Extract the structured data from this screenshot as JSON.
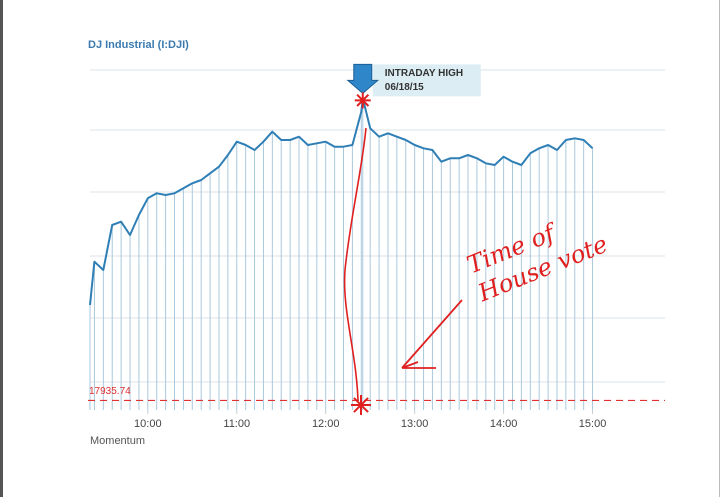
{
  "chart_data": {
    "type": "line",
    "title": "DJ Industrial (I:DJI)",
    "color": "#2f7fb6",
    "x": [
      561,
      564,
      570,
      576,
      582,
      588,
      594,
      600,
      606,
      612,
      618,
      624,
      630,
      636,
      642,
      648,
      654,
      660,
      666,
      672,
      678,
      684,
      690,
      696,
      702,
      708,
      714,
      720,
      726,
      732,
      738,
      744,
      745,
      750,
      756,
      762,
      768,
      774,
      780,
      786,
      792,
      798,
      804,
      810,
      816,
      822,
      828,
      834,
      840,
      846,
      852,
      858,
      864,
      870,
      876,
      882,
      888,
      894,
      900
    ],
    "values": [
      17993,
      18019,
      18014,
      18041,
      18043,
      18035,
      18047,
      18057,
      18060,
      18059,
      18060,
      18063,
      18066,
      18068,
      18072,
      18076,
      18083,
      18091,
      18089,
      18086,
      18091,
      18097,
      18092,
      18092,
      18094,
      18089,
      18090,
      18091,
      18088,
      18088,
      18089,
      18109,
      18117,
      18099,
      18094,
      18096,
      18094,
      18092,
      18089,
      18087,
      18086,
      18079,
      18081,
      18081,
      18083,
      18081,
      18078,
      18077,
      18082,
      18079,
      18077,
      18084,
      18087,
      18089,
      18086,
      18092,
      18093,
      18092,
      18087
    ],
    "xlim": [
      561,
      903
    ],
    "xticks": [
      {
        "value": 600,
        "label": "10:00"
      },
      {
        "value": 660,
        "label": "11:00"
      },
      {
        "value": 720,
        "label": "12:00"
      },
      {
        "value": 780,
        "label": "13:00"
      },
      {
        "value": 840,
        "label": "14:00"
      },
      {
        "value": 900,
        "label": "15:00"
      }
    ],
    "ylim": [
      17930,
      18134
    ],
    "reference_line": {
      "value": 17935.74,
      "label": "17935.74",
      "color": "#e03030"
    },
    "high_marker": {
      "label": "INTRADAY HIGH",
      "date": "06/18/15",
      "index": 32
    },
    "annotation": [
      "Time of",
      "House vote"
    ],
    "footer": "Momentum"
  }
}
